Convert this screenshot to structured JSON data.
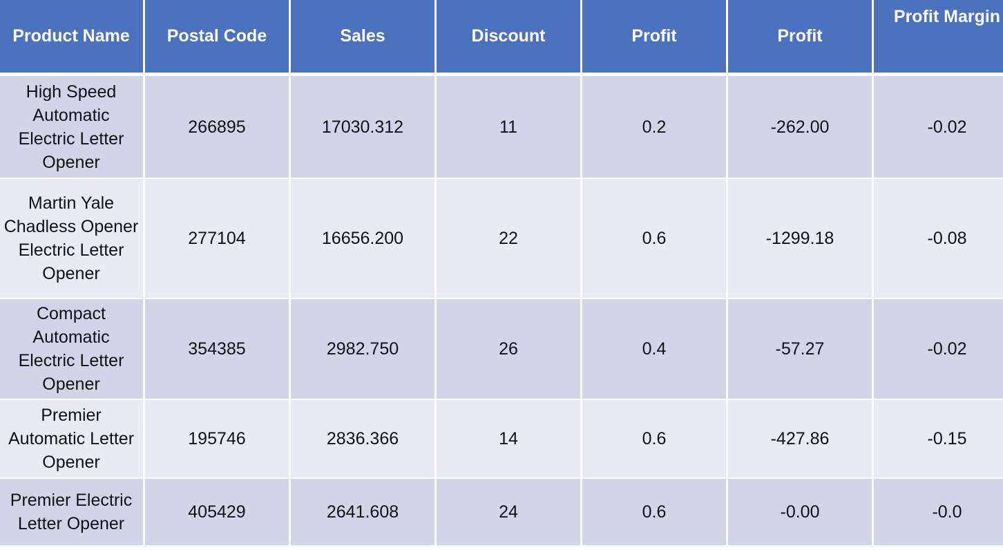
{
  "table": {
    "headers": [
      "Product Name",
      "Postal Code",
      "Sales",
      "Discount",
      "Profit",
      "Profit",
      "Profit Margin"
    ],
    "rows": [
      [
        "High Speed Automatic Electric Letter Opener",
        "266895",
        "17030.312",
        "11",
        "0.2",
        "-262.00",
        "-0.02"
      ],
      [
        "Martin Yale Chadless Opener Electric Letter Opener",
        "277104",
        "16656.200",
        "22",
        "0.6",
        "-1299.18",
        "-0.08"
      ],
      [
        "Compact Automatic Electric Letter Opener",
        "354385",
        "2982.750",
        "26",
        "0.4",
        "-57.27",
        "-0.02"
      ],
      [
        "Premier Automatic Letter Opener",
        "195746",
        "2836.366",
        "14",
        "0.6",
        "-427.86",
        "-0.15"
      ],
      [
        "Premier Electric Letter Opener",
        "405429",
        "2641.608",
        "24",
        "0.6",
        "-0.00",
        "-0.0"
      ]
    ],
    "colors": {
      "header_bg": "#4a72be",
      "row_dark": "#d0d6e8",
      "row_light": "#e9ebf4"
    }
  }
}
